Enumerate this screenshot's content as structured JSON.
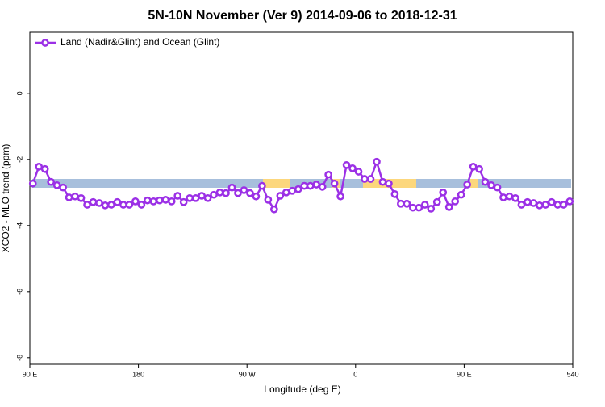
{
  "chart_data": {
    "type": "line",
    "title": "5N-10N November (Ver 9)   2014-09-06 to 2018-12-31",
    "xlabel": "Longitude (deg E)",
    "ylabel": "XCO2 - MLO trend (ppm)",
    "xlim": [
      90,
      540
    ],
    "ylim": [
      -8.2,
      1.85
    ],
    "xticks": [
      {
        "value": 90,
        "label": "90 E"
      },
      180,
      {
        "value": 270,
        "label": "90 W"
      },
      {
        "value": 360,
        "label": "0"
      },
      {
        "value": 450,
        "label": "90 E"
      },
      540
    ],
    "yticks": [
      0,
      -2,
      -4,
      -6,
      -8
    ],
    "legend": "top-left",
    "x": [
      92.5,
      97.5,
      102.5,
      107.5,
      112.5,
      117.5,
      122.5,
      127.5,
      132.5,
      137.5,
      142.5,
      147.5,
      152.5,
      157.5,
      162.5,
      167.5,
      172.5,
      177.5,
      182.5,
      187.5,
      192.5,
      197.5,
      202.5,
      207.5,
      212.5,
      217.5,
      222.5,
      227.5,
      232.5,
      237.5,
      242.5,
      247.5,
      252.5,
      257.5,
      262.5,
      267.5,
      272.5,
      277.5,
      282.5,
      287.5,
      292.5,
      297.5,
      302.5,
      307.5,
      312.5,
      317.5,
      322.5,
      327.5,
      332.5,
      337.5,
      342.5,
      347.5,
      352.5,
      357.5,
      362.5,
      367.5,
      372.5,
      377.5,
      382.5,
      387.5,
      392.5,
      397.5,
      402.5,
      407.5,
      412.5,
      417.5,
      422.5,
      427.5,
      432.5,
      437.5,
      442.5,
      447.5,
      452.5,
      457.5,
      462.5,
      467.5,
      472.5,
      477.5,
      482.5,
      487.5,
      492.5,
      497.5,
      502.5,
      507.5,
      512.5,
      517.5,
      522.5,
      527.5,
      532.5,
      537.5
    ],
    "series": [
      {
        "name": "Land (Nadir&Glint) and Ocean (Glint)",
        "color": "#9b30e6",
        "values": [
          -2.73,
          -2.22,
          -2.29,
          -2.68,
          -2.78,
          -2.85,
          -3.15,
          -3.12,
          -3.17,
          -3.37,
          -3.29,
          -3.32,
          -3.39,
          -3.37,
          -3.29,
          -3.37,
          -3.37,
          -3.27,
          -3.37,
          -3.24,
          -3.27,
          -3.24,
          -3.22,
          -3.27,
          -3.1,
          -3.29,
          -3.17,
          -3.17,
          -3.1,
          -3.17,
          -3.07,
          -3.0,
          -3.02,
          -2.85,
          -3.02,
          -2.93,
          -3.02,
          -3.12,
          -2.8,
          -3.22,
          -3.51,
          -3.1,
          -3.0,
          -2.95,
          -2.9,
          -2.8,
          -2.8,
          -2.76,
          -2.83,
          -2.46,
          -2.73,
          -3.12,
          -2.17,
          -2.27,
          -2.37,
          -2.59,
          -2.59,
          -2.07,
          -2.68,
          -2.73,
          -3.05,
          -3.34,
          -3.34,
          -3.46,
          -3.46,
          -3.37,
          -3.49,
          -3.29,
          -3.0,
          -3.44,
          -3.27,
          -3.07,
          -2.76,
          -2.22,
          -2.29,
          -2.68,
          -2.78,
          -2.85,
          -3.15,
          -3.12,
          -3.17,
          -3.37,
          -3.29,
          -3.32,
          -3.39,
          -3.37,
          -3.29,
          -3.37,
          -3.37,
          -3.27
        ]
      }
    ]
  }
}
